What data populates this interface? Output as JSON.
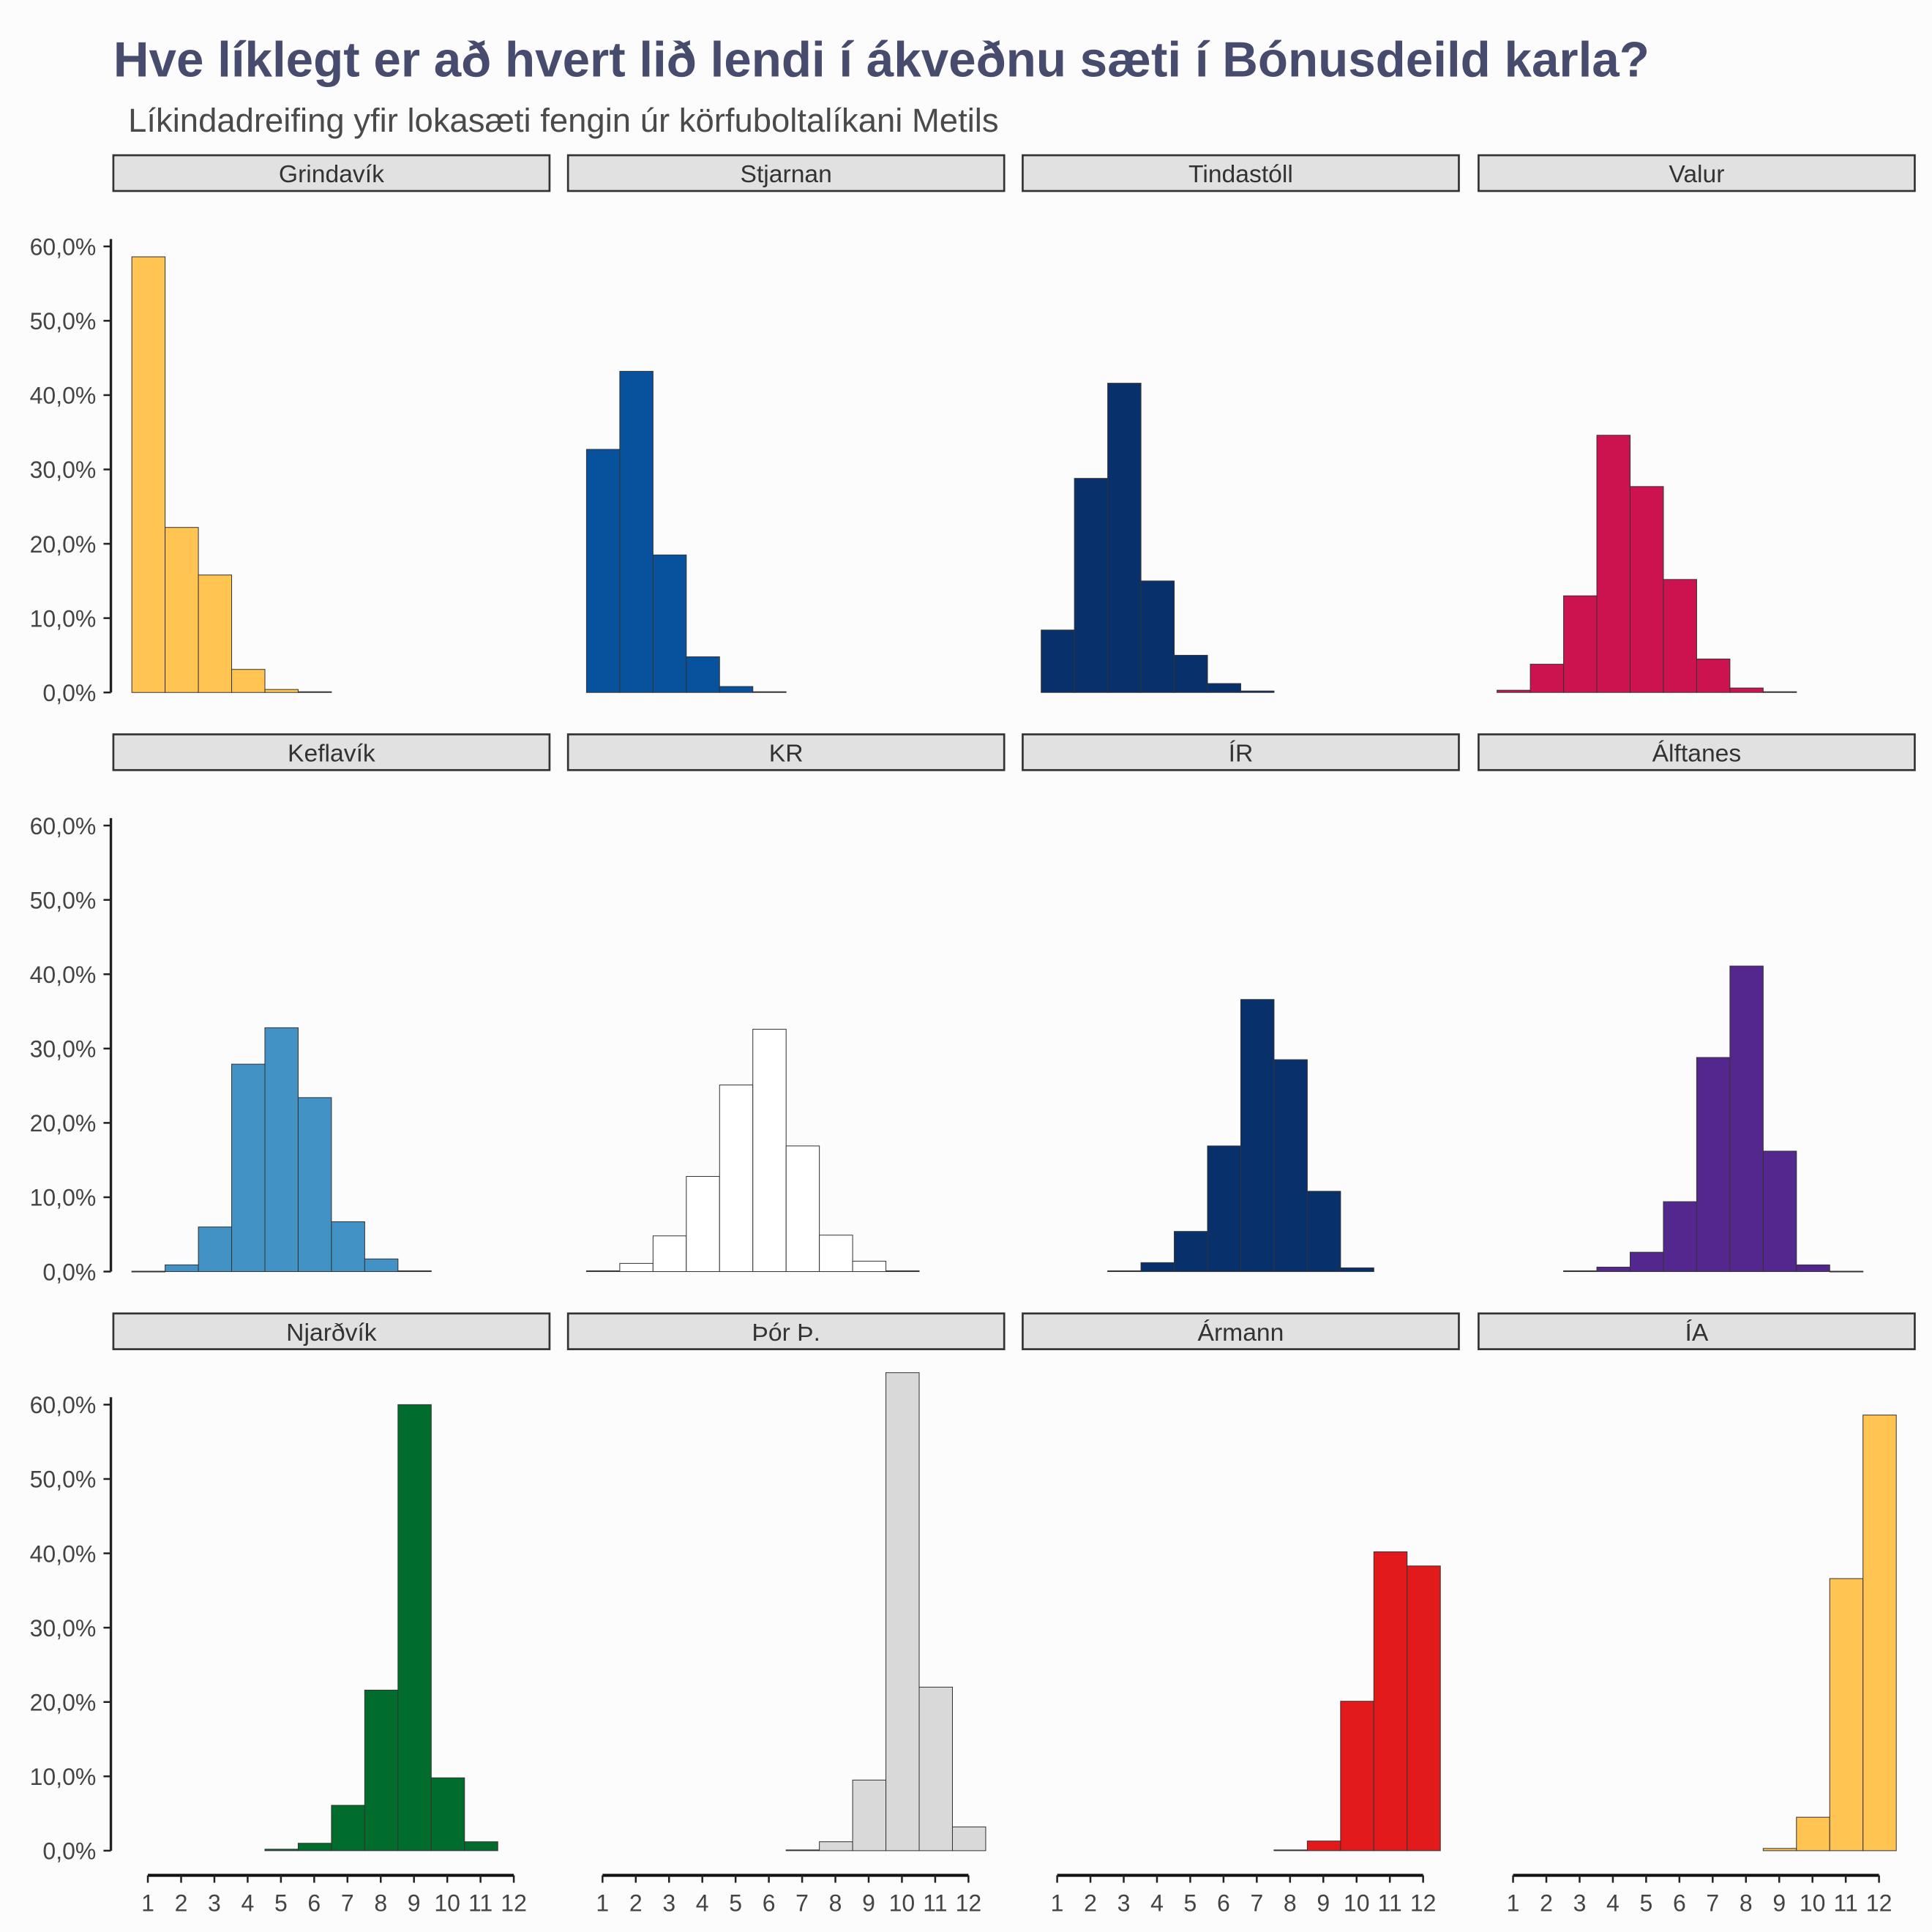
{
  "title": "Hve líklegt er að hvert lið lendi í ákveðnu sæti í Bónusdeild karla?",
  "subtitle": "Líkindadreifing yfir lokasæti fengin úr körfuboltalíkani Metils",
  "chart_data": {
    "type": "bar",
    "facet_layout": "3 rows x 4 columns",
    "x_categories": [
      1,
      2,
      3,
      4,
      5,
      6,
      7,
      8,
      9,
      10,
      11,
      12
    ],
    "y_ticks": [
      "0,0%",
      "10,0%",
      "20,0%",
      "30,0%",
      "40,0%",
      "50,0%",
      "60,0%"
    ],
    "ylim": [
      0,
      65
    ],
    "grid": false,
    "panels": [
      {
        "team": "Grindavík",
        "color": "#FFC451",
        "values": [
          58.6,
          22.2,
          15.8,
          3.1,
          0.4,
          0.1,
          0,
          0,
          0,
          0,
          0,
          0
        ]
      },
      {
        "team": "Stjarnan",
        "color": "#08519C",
        "values": [
          32.7,
          43.2,
          18.5,
          4.8,
          0.8,
          0.1,
          0,
          0,
          0,
          0,
          0,
          0
        ]
      },
      {
        "team": "Tindastóll",
        "color": "#08306B",
        "values": [
          8.4,
          28.8,
          41.6,
          15.0,
          5.0,
          1.2,
          0.2,
          0,
          0,
          0,
          0,
          0
        ]
      },
      {
        "team": "Valur",
        "color": "#CC1350",
        "values": [
          0.3,
          3.8,
          13.0,
          34.6,
          27.7,
          15.2,
          4.5,
          0.6,
          0.1,
          0,
          0,
          0
        ]
      },
      {
        "team": "Keflavík",
        "color": "#4292C6",
        "values": [
          0.05,
          0.9,
          6.0,
          27.9,
          32.8,
          23.4,
          6.7,
          1.7,
          0.1,
          0,
          0,
          0
        ]
      },
      {
        "team": "KR",
        "color": "#FFFFFF",
        "values": [
          0.1,
          1.1,
          4.8,
          12.8,
          25.1,
          32.6,
          16.9,
          4.9,
          1.4,
          0.1,
          0,
          0
        ]
      },
      {
        "team": "ÍR",
        "color": "#08306B",
        "values": [
          0,
          0,
          0.1,
          1.2,
          5.4,
          16.9,
          36.6,
          28.5,
          10.8,
          0.5,
          0,
          0
        ]
      },
      {
        "team": "Álftanes",
        "color": "#54278F",
        "values": [
          0,
          0,
          0.1,
          0.6,
          2.6,
          9.4,
          28.8,
          41.1,
          16.2,
          0.9,
          0.05,
          0
        ]
      },
      {
        "team": "Njarðvík",
        "color": "#006D2C",
        "values": [
          0,
          0,
          0,
          0,
          0.2,
          1.0,
          6.1,
          21.6,
          60.0,
          9.8,
          1.2,
          0
        ]
      },
      {
        "team": "Þór Þ.",
        "color": "#D9D9D9",
        "values": [
          0,
          0,
          0,
          0,
          0,
          0,
          0.1,
          1.2,
          9.5,
          64.3,
          22.0,
          3.2
        ]
      },
      {
        "team": "Ármann",
        "color": "#E31A1C",
        "values": [
          0,
          0,
          0,
          0,
          0,
          0,
          0,
          0.1,
          1.3,
          20.1,
          40.2,
          38.3
        ]
      },
      {
        "team": "ÍA",
        "color": "#FFC451",
        "values": [
          0,
          0,
          0,
          0,
          0,
          0,
          0,
          0,
          0.3,
          4.5,
          36.6,
          58.6
        ]
      }
    ]
  }
}
